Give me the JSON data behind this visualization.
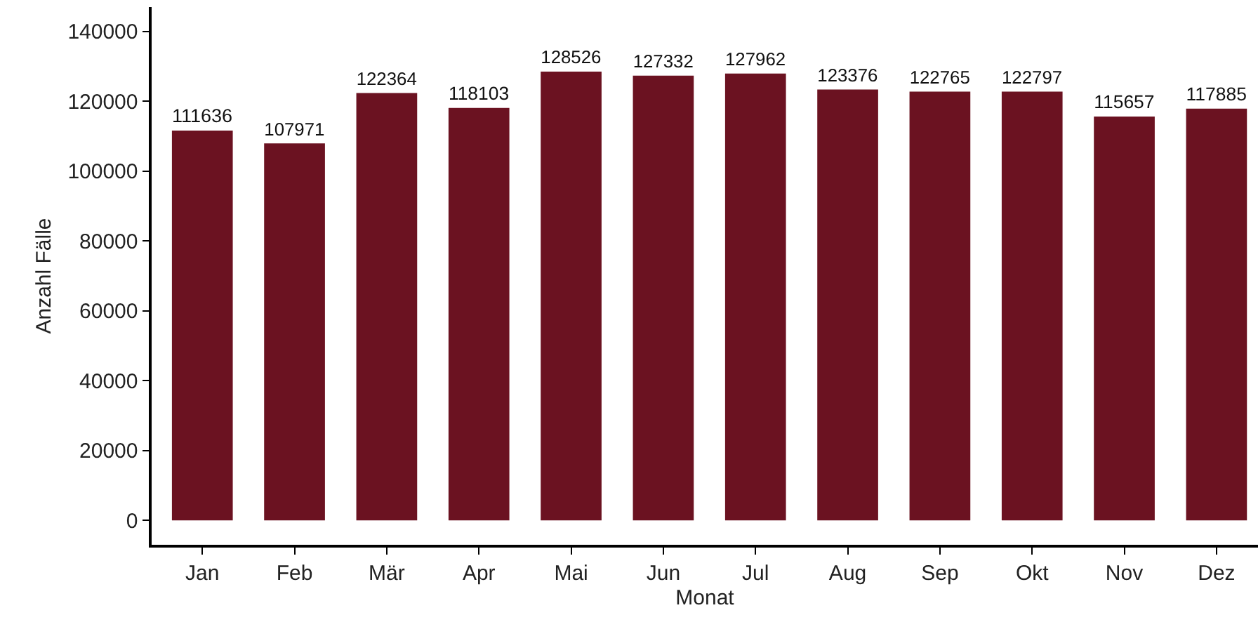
{
  "chart_data": {
    "type": "bar",
    "xlabel": "Monat",
    "ylabel": "Anzahl Fälle",
    "categories": [
      "Jan",
      "Feb",
      "Mär",
      "Apr",
      "Mai",
      "Jun",
      "Jul",
      "Aug",
      "Sep",
      "Okt",
      "Nov",
      "Dez"
    ],
    "values": [
      111636,
      107971,
      122364,
      118103,
      128526,
      127332,
      127962,
      123376,
      122765,
      122797,
      115657,
      117885
    ],
    "color": "#6b1221",
    "ylim": [
      -7000,
      147000
    ],
    "yticks": [
      0,
      20000,
      40000,
      60000,
      80000,
      100000,
      120000,
      140000
    ],
    "data_labels": true,
    "grid": false,
    "legend": false
  }
}
